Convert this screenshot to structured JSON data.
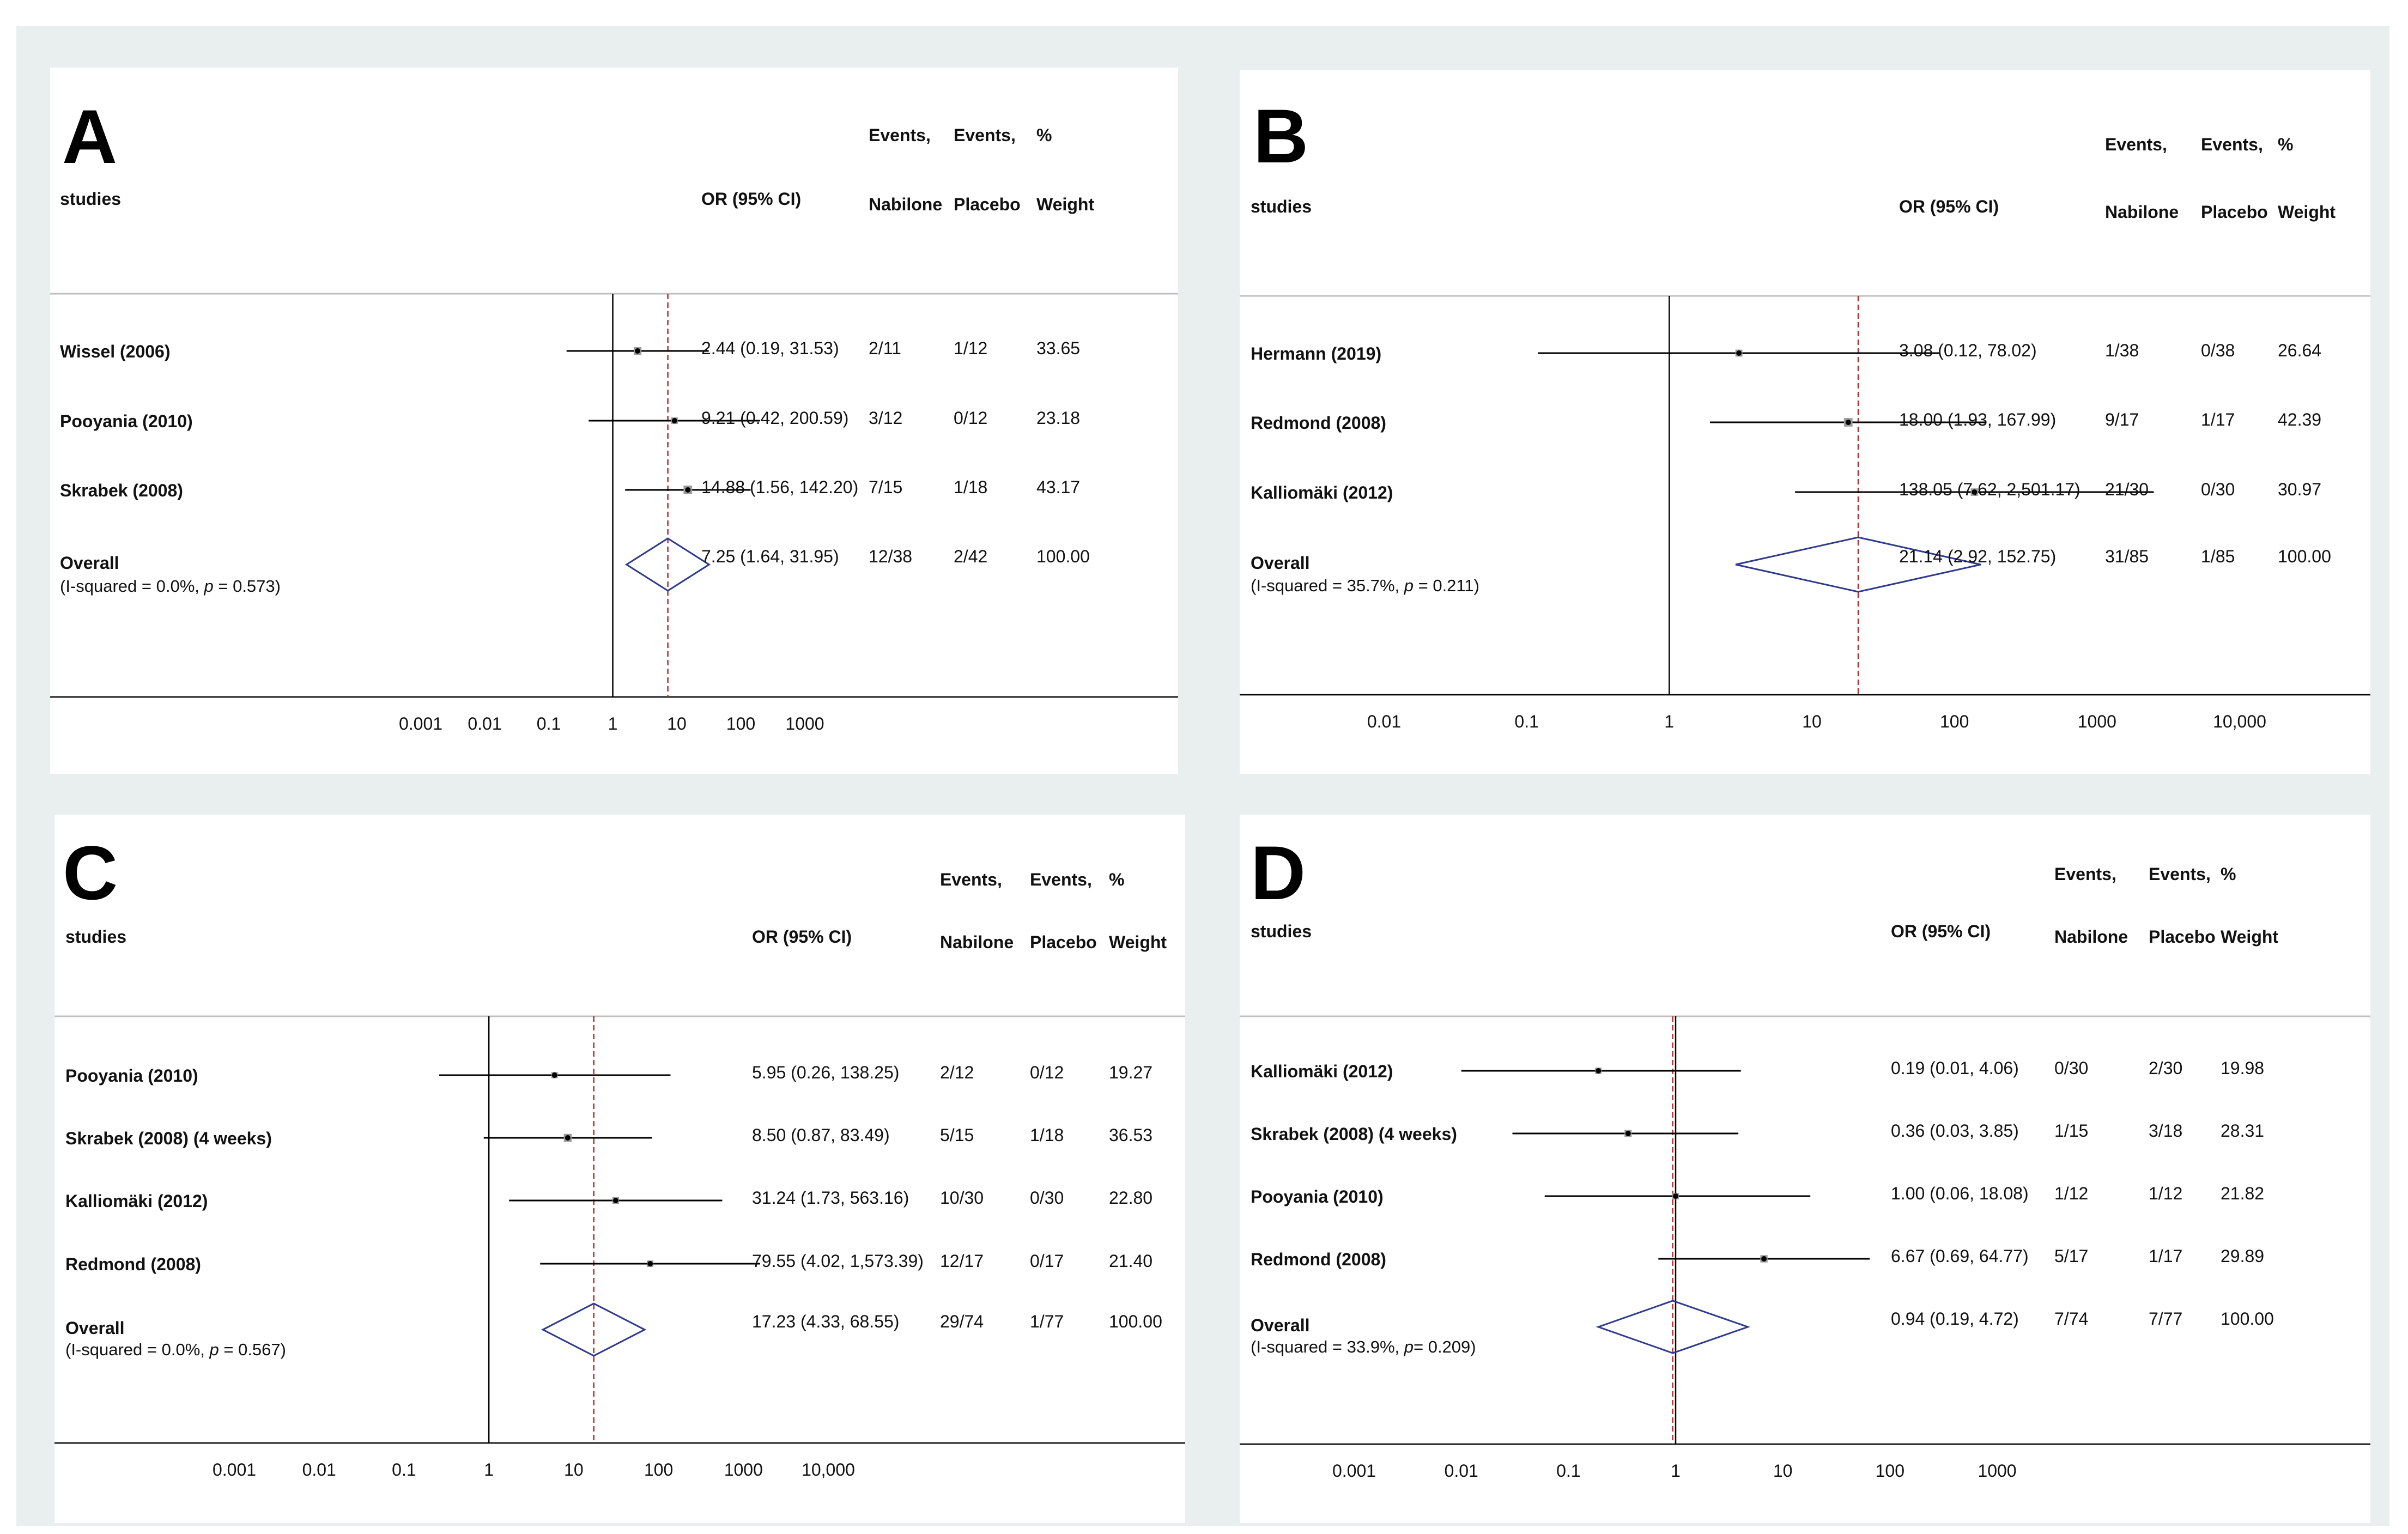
{
  "figure": {
    "background_color": "#e8efee",
    "diamond_color": "#2e3a8c",
    "reference_line_color": "#b22a2a",
    "ci_line_color": "#000000"
  },
  "chart_data": [
    {
      "type": "forest",
      "panel_label": "A",
      "column_headers": {
        "studies": "studies",
        "or_ci": "OR (95% CI)",
        "events_nabilone_top": "Events,",
        "events_nabilone_bottom": "Nabilone",
        "events_placebo_top": "Events,",
        "events_placebo_bottom": "Placebo",
        "weight_top": "%",
        "weight_bottom": "Weight"
      },
      "x_scale": "log",
      "xlim": [
        0.0003,
        30000
      ],
      "x_ticks": [
        0.001,
        0.01,
        0.1,
        1,
        10,
        100,
        1000
      ],
      "x_tick_labels": [
        "0.001",
        "0.01",
        "0.1",
        "1",
        "10",
        "100",
        "1000"
      ],
      "null_line": 1,
      "studies": [
        {
          "name": "Wissel (2006)",
          "or": 2.44,
          "lo": 0.19,
          "hi": 31.53,
          "or_text": "2.44 (0.19, 31.53)",
          "events_nabilone": "2/11",
          "events_placebo": "1/12",
          "weight": "33.65"
        },
        {
          "name": "Pooyania (2010)",
          "or": 9.21,
          "lo": 0.42,
          "hi": 200.59,
          "or_text": "9.21 (0.42, 200.59)",
          "events_nabilone": "3/12",
          "events_placebo": "0/12",
          "weight": "23.18"
        },
        {
          "name": "Skrabek (2008)",
          "or": 14.88,
          "lo": 1.56,
          "hi": 142.2,
          "or_text": "14.88 (1.56, 142.20)",
          "events_nabilone": "7/15",
          "events_placebo": "1/18",
          "weight": "43.17"
        }
      ],
      "overall": {
        "label": "Overall",
        "heterogeneity_prefix": "(I-squared = 0.0%, ",
        "heterogeneity_p": "p",
        "heterogeneity_suffix": " = 0.573)",
        "or": 7.25,
        "lo": 1.64,
        "hi": 31.95,
        "or_text": "7.25 (1.64, 31.95)",
        "events_nabilone": "12/38",
        "events_placebo": "2/42",
        "weight": "100.00"
      }
    },
    {
      "type": "forest",
      "panel_label": "B",
      "column_headers": {
        "studies": "studies",
        "or_ci": "OR (95% CI)",
        "events_nabilone_top": "Events,",
        "events_nabilone_bottom": "Nabilone",
        "events_placebo_top": "Events,",
        "events_placebo_bottom": "Placebo",
        "weight_top": "%",
        "weight_bottom": "Weight"
      },
      "x_scale": "log",
      "xlim": [
        0.0012,
        150000
      ],
      "x_ticks": [
        0.01,
        0.1,
        1,
        10,
        100,
        1000,
        10000
      ],
      "x_tick_labels": [
        "0.01",
        "0.1",
        "1",
        "10",
        "100",
        "1000",
        "10,000"
      ],
      "null_line": 1,
      "studies": [
        {
          "name": "Hermann (2019)",
          "or": 3.08,
          "lo": 0.12,
          "hi": 78.02,
          "or_text": "3.08 (0.12, 78.02)",
          "events_nabilone": "1/38",
          "events_placebo": "0/38",
          "weight": "26.64"
        },
        {
          "name": "Redmond (2008)",
          "or": 18.0,
          "lo": 1.93,
          "hi": 167.99,
          "or_text": "18.00 (1.93, 167.99)",
          "events_nabilone": "9/17",
          "events_placebo": "1/17",
          "weight": "42.39"
        },
        {
          "name": "Kalliomäki (2012)",
          "or": 138.05,
          "lo": 7.62,
          "hi": 2501.17,
          "or_text": "138.05 (7.62, 2,501.17)",
          "events_nabilone": "21/30",
          "events_placebo": "0/30",
          "weight": "30.97"
        }
      ],
      "overall": {
        "label": "Overall",
        "heterogeneity_prefix": "(I-squared = 35.7%, ",
        "heterogeneity_p": "p",
        "heterogeneity_suffix": " = 0.211)",
        "or": 21.14,
        "lo": 2.92,
        "hi": 152.75,
        "or_text": "21.14 (2.92, 152.75)",
        "events_nabilone": "31/85",
        "events_placebo": "1/85",
        "weight": "100.00"
      }
    },
    {
      "type": "forest",
      "panel_label": "C",
      "column_headers": {
        "studies": "studies",
        "or_ci": "OR (95% CI)",
        "events_nabilone_top": "Events,",
        "events_nabilone_bottom": "Nabilone",
        "events_placebo_top": "Events,",
        "events_placebo_bottom": "Placebo",
        "weight_top": "%",
        "weight_bottom": "Weight"
      },
      "x_scale": "log",
      "xlim": [
        0.0003,
        100000
      ],
      "x_ticks": [
        0.001,
        0.01,
        0.1,
        1,
        10,
        100,
        1000,
        10000
      ],
      "x_tick_labels": [
        "0.001",
        "0.01",
        "0.1",
        "1",
        "10",
        "100",
        "1000",
        "10,000"
      ],
      "null_line": 1,
      "studies": [
        {
          "name": "Pooyania (2010)",
          "or": 5.95,
          "lo": 0.26,
          "hi": 138.25,
          "or_text": "5.95 (0.26, 138.25)",
          "events_nabilone": "2/12",
          "events_placebo": "0/12",
          "weight": "19.27"
        },
        {
          "name": "Skrabek (2008) (4 weeks)",
          "or": 8.5,
          "lo": 0.87,
          "hi": 83.49,
          "or_text": "8.50 (0.87, 83.49)",
          "events_nabilone": "5/15",
          "events_placebo": "1/18",
          "weight": "36.53"
        },
        {
          "name": "Kalliomäki (2012)",
          "or": 31.24,
          "lo": 1.73,
          "hi": 563.16,
          "or_text": "31.24 (1.73, 563.16)",
          "events_nabilone": "10/30",
          "events_placebo": "0/30",
          "weight": "22.80"
        },
        {
          "name": "Redmond (2008)",
          "or": 79.55,
          "lo": 4.02,
          "hi": 1573.39,
          "or_text": "79.55 (4.02, 1,573.39)",
          "events_nabilone": "12/17",
          "events_placebo": "0/17",
          "weight": "21.40"
        }
      ],
      "overall": {
        "label": "Overall",
        "heterogeneity_prefix": "(I-squared = 0.0%, ",
        "heterogeneity_p": "p",
        "heterogeneity_suffix": " = 0.567)",
        "or": 17.23,
        "lo": 4.33,
        "hi": 68.55,
        "or_text": "17.23 (4.33, 68.55)",
        "events_nabilone": "29/74",
        "events_placebo": "1/77",
        "weight": "100.00"
      }
    },
    {
      "type": "forest",
      "panel_label": "D",
      "column_headers": {
        "studies": "studies",
        "or_ci": "OR (95% CI)",
        "events_nabilone_top": "Events,",
        "events_nabilone_bottom": "Nabilone",
        "events_placebo_top": "Events,",
        "events_placebo_bottom": "Placebo",
        "weight_top": "%",
        "weight_bottom": "Weight"
      },
      "x_scale": "log",
      "xlim": [
        0.00015,
        12000
      ],
      "x_ticks": [
        0.001,
        0.01,
        0.1,
        1,
        10,
        100,
        1000
      ],
      "x_tick_labels": [
        "0.001",
        "0.01",
        "0.1",
        "1",
        "10",
        "100",
        "1000"
      ],
      "null_line": 1,
      "studies": [
        {
          "name": "Kalliomäki (2012)",
          "or": 0.19,
          "lo": 0.01,
          "hi": 4.06,
          "or_text": "0.19 (0.01, 4.06)",
          "events_nabilone": "0/30",
          "events_placebo": "2/30",
          "weight": "19.98"
        },
        {
          "name": "Skrabek (2008) (4 weeks)",
          "or": 0.36,
          "lo": 0.03,
          "hi": 3.85,
          "or_text": "0.36 (0.03, 3.85)",
          "events_nabilone": "1/15",
          "events_placebo": "3/18",
          "weight": "28.31"
        },
        {
          "name": "Pooyania (2010)",
          "or": 1.0,
          "lo": 0.06,
          "hi": 18.08,
          "or_text": "1.00 (0.06, 18.08)",
          "events_nabilone": "1/12",
          "events_placebo": "1/12",
          "weight": "21.82"
        },
        {
          "name": "Redmond (2008)",
          "or": 6.67,
          "lo": 0.69,
          "hi": 64.77,
          "or_text": "6.67 (0.69, 64.77)",
          "events_nabilone": "5/17",
          "events_placebo": "1/17",
          "weight": "29.89"
        }
      ],
      "overall": {
        "label": "Overall",
        "heterogeneity_prefix": "(I-squared = 33.9%, ",
        "heterogeneity_p": "p",
        "heterogeneity_suffix": "= 0.209)",
        "or": 0.94,
        "lo": 0.19,
        "hi": 4.72,
        "or_text": "0.94 (0.19, 4.72)",
        "events_nabilone": "7/74",
        "events_placebo": "7/77",
        "weight": "100.00"
      }
    }
  ]
}
